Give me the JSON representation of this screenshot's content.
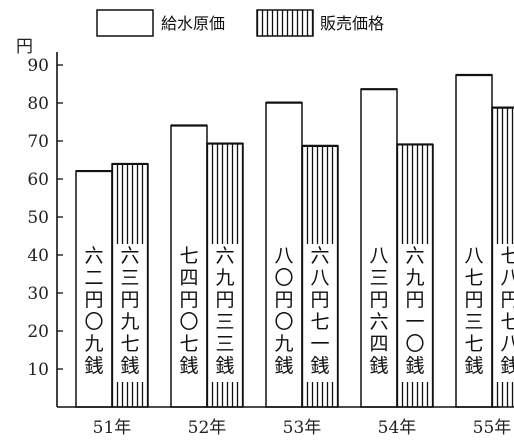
{
  "chart_data": {
    "type": "bar",
    "unit": "円",
    "categories": [
      "51年",
      "52年",
      "53年",
      "54年",
      "55年"
    ],
    "series": [
      {
        "name": "給水原価",
        "values": [
          62.09,
          74.07,
          80.09,
          83.64,
          87.37
        ],
        "labels": [
          "六二円〇九銭",
          "七四円〇七銭",
          "八〇円〇九銭",
          "八三円六四銭",
          "八七円三七銭"
        ],
        "pattern": "blank"
      },
      {
        "name": "販売価格",
        "values": [
          63.97,
          69.33,
          68.71,
          69.1,
          78.78
        ],
        "labels": [
          "六三円九七銭",
          "六九円三三銭",
          "六八円七一銭",
          "六九円一〇銭",
          "七八円七八銭"
        ],
        "pattern": "vertical-stripes"
      }
    ],
    "yticks": [
      10,
      20,
      30,
      40,
      50,
      60,
      70,
      80,
      90
    ],
    "ylim": [
      0,
      95
    ],
    "legend_position": "top-center"
  }
}
